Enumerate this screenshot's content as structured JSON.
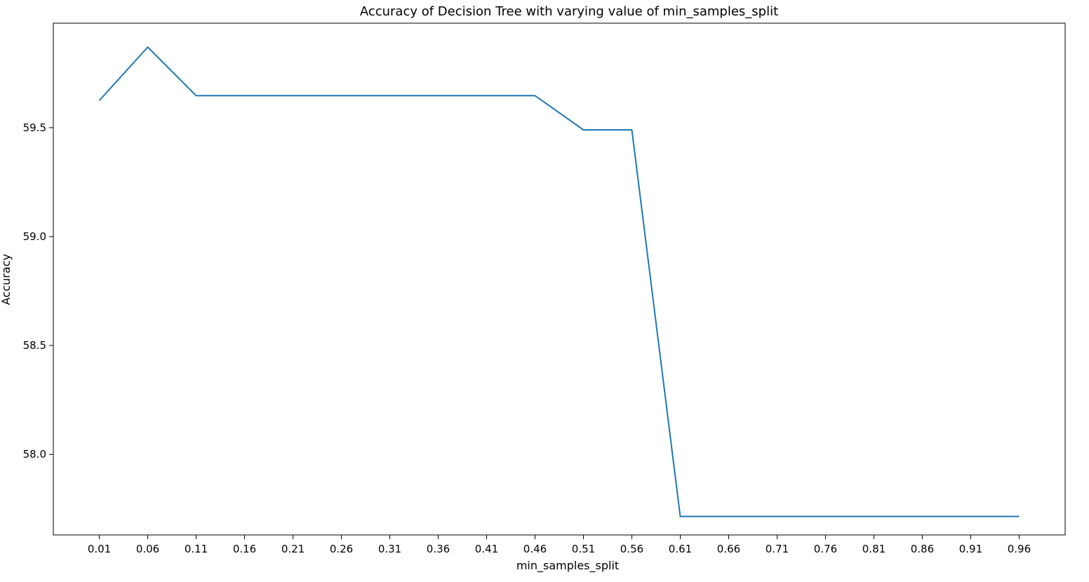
{
  "chart_data": {
    "type": "line",
    "title": "Accuracy of Decision Tree with varying value of min_samples_split",
    "xlabel": "min_samples_split",
    "ylabel": "Accuracy",
    "x": [
      0.01,
      0.06,
      0.11,
      0.16,
      0.21,
      0.26,
      0.31,
      0.36,
      0.41,
      0.46,
      0.51,
      0.56,
      0.61,
      0.66,
      0.71,
      0.76,
      0.81,
      0.86,
      0.91,
      0.96
    ],
    "x_tick_labels": [
      "0.01",
      "0.06",
      "0.11",
      "0.16",
      "0.21",
      "0.26",
      "0.31",
      "0.36",
      "0.41",
      "0.46",
      "0.51",
      "0.56",
      "0.61",
      "0.66",
      "0.71",
      "0.76",
      "0.81",
      "0.86",
      "0.91",
      "0.96"
    ],
    "series": [
      {
        "values": [
          59.625,
          59.87,
          59.647,
          59.647,
          59.647,
          59.647,
          59.647,
          59.647,
          59.647,
          59.647,
          59.49,
          59.49,
          57.715,
          57.715,
          57.715,
          57.715,
          57.715,
          57.715,
          57.715,
          57.715
        ],
        "color": "#1f77b4"
      }
    ],
    "y_ticks": [
      58.0,
      58.5,
      59.0,
      59.5
    ],
    "y_tick_labels": [
      "58.0",
      "58.5",
      "59.0",
      "59.5"
    ],
    "xlim": [
      -0.0375,
      1.0075
    ],
    "ylim": [
      57.63,
      59.98
    ],
    "grid": false,
    "legend": false
  }
}
